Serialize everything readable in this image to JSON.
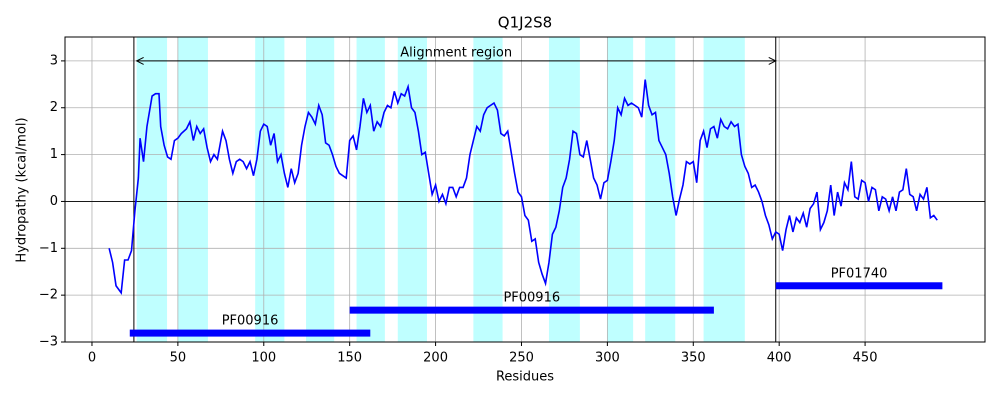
{
  "chart_data": {
    "type": "line",
    "title": "Q1J2S8",
    "x_label": "Residues",
    "y_label": "Hydropathy (kcal/mol)",
    "xlim": [
      -15.7,
      519.8
    ],
    "ylim": [
      -3,
      3.51
    ],
    "xticks": [
      0,
      50,
      100,
      150,
      200,
      250,
      300,
      350,
      400,
      450
    ],
    "yticks": [
      {
        "value": -3,
        "label": "−3"
      },
      {
        "value": -2,
        "label": "−2"
      },
      {
        "value": -1,
        "label": "−1"
      },
      0,
      1,
      2,
      3
    ],
    "grid": true,
    "hlines": [
      0
    ],
    "vlines": [
      24.4,
      398
    ],
    "band_color": "#bfffff",
    "bands": [
      [
        26,
        43.7
      ],
      [
        50,
        67.5
      ],
      [
        95,
        112
      ],
      [
        124.6,
        141
      ],
      [
        154,
        170.5
      ],
      [
        178,
        195
      ],
      [
        222,
        239
      ],
      [
        266,
        284
      ],
      [
        300,
        315
      ],
      [
        322,
        339.5
      ],
      [
        356,
        380
      ]
    ],
    "annotation": {
      "text": "Alignment region",
      "start": 26,
      "end": 398,
      "y": 3
    },
    "domain_color": "#0000ff",
    "domains": [
      {
        "label": "PF00916",
        "start": 22,
        "end": 162,
        "y": -2.81
      },
      {
        "label": "PF00916",
        "start": 150,
        "end": 362,
        "y": -2.32
      },
      {
        "label": "PF01740",
        "start": 398,
        "end": 495,
        "y": -1.8
      }
    ],
    "x": [
      10,
      12,
      14,
      17,
      19,
      21,
      23,
      25,
      27,
      28,
      30,
      32,
      35,
      37,
      39,
      40,
      42,
      44,
      46,
      48,
      50,
      52,
      55,
      57,
      59,
      61,
      63,
      65,
      67,
      69,
      71,
      73,
      76,
      78,
      80,
      82,
      84,
      86,
      88,
      90,
      92,
      94,
      96,
      98,
      100,
      102,
      104,
      106,
      108,
      110,
      112,
      114,
      116,
      118,
      120,
      122,
      124,
      126,
      128,
      130,
      132,
      134,
      136,
      138,
      140,
      142,
      144,
      146,
      148,
      150,
      152,
      154,
      156,
      158,
      160,
      162,
      164,
      166,
      168,
      170,
      172,
      174,
      176,
      178,
      180,
      182,
      184,
      186,
      188,
      190,
      192,
      194,
      196,
      198,
      200,
      202,
      204,
      206,
      208,
      210,
      212,
      214,
      216,
      218,
      220,
      222,
      224,
      226,
      228,
      230,
      232,
      234,
      236,
      238,
      240,
      242,
      244,
      246,
      248,
      250,
      252,
      254,
      256,
      258,
      260,
      262,
      264,
      266,
      268,
      270,
      272,
      274,
      276,
      278,
      280,
      282,
      284,
      286,
      288,
      290,
      292,
      294,
      296,
      298,
      300,
      302,
      304,
      306,
      308,
      310,
      312,
      314,
      316,
      318,
      320,
      322,
      324,
      326,
      328,
      330,
      332,
      334,
      336,
      338,
      340,
      342,
      344,
      346,
      348,
      350,
      352,
      354,
      356,
      358,
      360,
      362,
      364,
      366,
      368,
      370,
      372,
      374,
      376,
      378,
      380,
      382,
      384,
      386,
      388,
      390,
      392,
      394,
      396,
      398,
      400,
      402,
      404,
      406,
      408,
      410,
      412,
      414,
      416,
      418,
      420,
      422,
      424,
      426,
      428,
      430,
      432,
      434,
      436,
      438,
      440,
      442,
      444,
      446,
      448,
      450,
      452,
      454,
      456,
      458,
      460,
      462,
      464,
      466,
      468,
      470,
      472,
      474,
      476,
      478,
      480,
      482,
      484,
      486,
      488,
      490,
      492
    ],
    "series": [
      {
        "color": "#0000ff",
        "values": [
          -1.0,
          -1.3,
          -1.8,
          -1.95,
          -1.25,
          -1.25,
          -1.05,
          -0.2,
          0.5,
          1.35,
          0.85,
          1.6,
          2.25,
          2.3,
          2.3,
          1.6,
          1.2,
          0.95,
          0.9,
          1.3,
          1.35,
          1.45,
          1.55,
          1.7,
          1.3,
          1.6,
          1.45,
          1.55,
          1.15,
          0.85,
          1.0,
          0.9,
          1.5,
          1.3,
          0.9,
          0.6,
          0.85,
          0.9,
          0.85,
          0.7,
          0.85,
          0.55,
          0.9,
          1.5,
          1.65,
          1.6,
          1.2,
          1.45,
          0.85,
          1.0,
          0.6,
          0.3,
          0.7,
          0.4,
          0.6,
          1.2,
          1.6,
          1.9,
          1.8,
          1.65,
          2.05,
          1.85,
          1.25,
          1.2,
          1.0,
          0.75,
          0.6,
          0.55,
          0.5,
          1.3,
          1.4,
          1.1,
          1.6,
          2.2,
          1.9,
          2.05,
          1.5,
          1.7,
          1.6,
          1.9,
          2.05,
          2.0,
          2.35,
          2.1,
          2.3,
          2.25,
          2.45,
          2.0,
          1.9,
          1.5,
          1.0,
          1.05,
          0.6,
          0.15,
          0.35,
          0.0,
          0.15,
          -0.05,
          0.3,
          0.3,
          0.1,
          0.3,
          0.3,
          0.5,
          1.0,
          1.3,
          1.6,
          1.5,
          1.85,
          2.0,
          2.05,
          2.1,
          1.95,
          1.45,
          1.4,
          1.5,
          1.05,
          0.6,
          0.2,
          0.1,
          -0.3,
          -0.4,
          -0.85,
          -0.8,
          -1.3,
          -1.55,
          -1.75,
          -1.3,
          -0.7,
          -0.55,
          -0.2,
          0.3,
          0.5,
          0.9,
          1.5,
          1.45,
          1.0,
          0.95,
          1.3,
          0.9,
          0.5,
          0.35,
          0.05,
          0.4,
          0.45,
          0.85,
          1.3,
          2.0,
          1.85,
          2.2,
          2.05,
          2.1,
          2.05,
          2.0,
          1.8,
          2.6,
          2.05,
          1.85,
          1.9,
          1.3,
          1.15,
          1.0,
          0.6,
          0.1,
          -0.3,
          0.05,
          0.35,
          0.85,
          0.8,
          0.85,
          0.4,
          1.3,
          1.5,
          1.15,
          1.55,
          1.6,
          1.35,
          1.75,
          1.6,
          1.55,
          1.7,
          1.6,
          1.65,
          1.0,
          0.75,
          0.6,
          0.3,
          0.35,
          0.2,
          0.0,
          -0.3,
          -0.5,
          -0.8,
          -0.65,
          -0.7,
          -1.05,
          -0.6,
          -0.3,
          -0.65,
          -0.35,
          -0.45,
          -0.25,
          -0.55,
          -0.15,
          -0.05,
          0.2,
          -0.6,
          -0.45,
          -0.2,
          0.35,
          -0.3,
          0.2,
          -0.1,
          0.4,
          0.25,
          0.85,
          0.1,
          0.05,
          0.45,
          0.4,
          0.0,
          0.3,
          0.25,
          -0.2,
          0.1,
          0.05,
          -0.2,
          0.1,
          -0.2,
          0.2,
          0.25,
          0.7,
          0.15,
          0.1,
          -0.2,
          0.15,
          0.05,
          0.3,
          -0.35,
          -0.3,
          -0.4
        ]
      }
    ]
  }
}
